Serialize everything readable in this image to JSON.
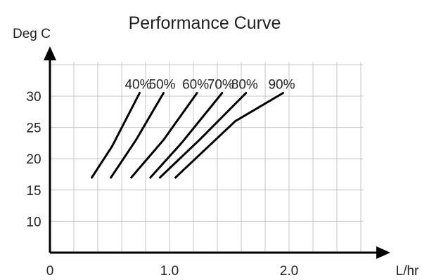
{
  "chart_data": {
    "type": "line",
    "title": "Performance Curve",
    "ylabel": "Deg C",
    "xlabel": "L/hr",
    "x_ticks": [
      {
        "value": 0,
        "label": "0"
      },
      {
        "value": 1.0,
        "label": "1.0"
      },
      {
        "value": 2.0,
        "label": "2.0"
      }
    ],
    "y_ticks": [
      {
        "value": 10,
        "label": "10"
      },
      {
        "value": 15,
        "label": "15"
      },
      {
        "value": 20,
        "label": "20"
      },
      {
        "value": 25,
        "label": "25"
      },
      {
        "value": 30,
        "label": "30"
      }
    ],
    "xlim": [
      0,
      2.6
    ],
    "ylim": [
      5,
      35
    ],
    "grid": true,
    "series": [
      {
        "name": "40%",
        "points": [
          [
            0.35,
            17
          ],
          [
            0.52,
            22
          ],
          [
            0.75,
            30.5
          ]
        ]
      },
      {
        "name": "50%",
        "points": [
          [
            0.51,
            17
          ],
          [
            0.72,
            23
          ],
          [
            0.95,
            30.5
          ]
        ]
      },
      {
        "name": "60%",
        "points": [
          [
            0.68,
            17
          ],
          [
            0.95,
            23
          ],
          [
            1.23,
            30.5
          ]
        ]
      },
      {
        "name": "70%",
        "points": [
          [
            0.84,
            17
          ],
          [
            1.1,
            22.5
          ],
          [
            1.44,
            30.5
          ]
        ]
      },
      {
        "name": "80%",
        "points": [
          [
            0.92,
            17
          ],
          [
            1.25,
            23
          ],
          [
            1.64,
            30.5
          ]
        ]
      },
      {
        "name": "90%",
        "points": [
          [
            1.05,
            17
          ],
          [
            1.55,
            26
          ],
          [
            1.95,
            30.5
          ]
        ]
      }
    ]
  }
}
